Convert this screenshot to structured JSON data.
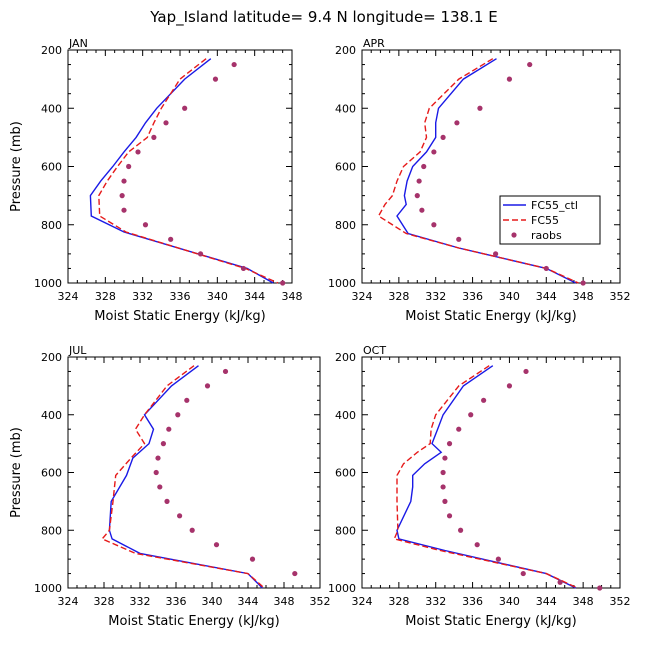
{
  "title": "Yap_Island  latitude= 9.4 N longitude= 138.1 E",
  "colors": {
    "ctl": "#1a1ae6",
    "fc55": "#e61a1a",
    "raobs": "#a6336b"
  },
  "legend": {
    "entries": [
      "FC55_ctl",
      "FC55",
      "raobs"
    ],
    "placement": "right-middle of APR panel"
  },
  "chart_data": [
    {
      "type": "line",
      "panel_label": "JAN",
      "xlabel": "Moist Static Energy (kJ/kg)",
      "ylabel": "Pressure (mb)",
      "xlim": [
        324,
        348
      ],
      "xticks": [
        324,
        328,
        332,
        336,
        340,
        344,
        348
      ],
      "ylim": [
        200,
        1000
      ],
      "yticks": [
        200,
        400,
        600,
        800,
        1000
      ],
      "series": [
        {
          "name": "FC55_ctl",
          "style": "solid",
          "x": [
            339.3,
            336.5,
            333.5,
            332.3,
            331.3,
            330.0,
            328.8,
            327.5,
            326.4,
            326.5,
            330.0,
            343.2,
            346.0
          ],
          "y": [
            230,
            300,
            400,
            450,
            500,
            550,
            600,
            650,
            700,
            770,
            825,
            950,
            1000
          ]
        },
        {
          "name": "FC55",
          "style": "dashed",
          "x": [
            338.8,
            336.0,
            334.0,
            333.2,
            332.5,
            330.5,
            329.3,
            328.2,
            327.3,
            327.4,
            330.2,
            343.0,
            346.5
          ],
          "y": [
            230,
            300,
            400,
            450,
            500,
            550,
            600,
            650,
            700,
            770,
            825,
            950,
            1000
          ]
        },
        {
          "name": "raobs",
          "style": "points",
          "x": [
            341.8,
            339.8,
            336.5,
            334.5,
            333.2,
            331.5,
            330.5,
            330.0,
            329.8,
            330.0,
            332.3,
            335.0,
            338.2,
            342.8,
            347.0
          ],
          "y": [
            250,
            300,
            400,
            450,
            500,
            550,
            600,
            650,
            700,
            750,
            800,
            850,
            900,
            950,
            1000
          ]
        }
      ]
    },
    {
      "type": "line",
      "panel_label": "APR",
      "xlabel": "Moist Static Energy (kJ/kg)",
      "ylabel": "Pressure (mb)",
      "xlim": [
        324,
        352
      ],
      "xticks": [
        324,
        328,
        332,
        336,
        340,
        344,
        348,
        352
      ],
      "ylim": [
        200,
        1000
      ],
      "yticks": [
        200,
        400,
        600,
        800,
        1000
      ],
      "series": [
        {
          "name": "FC55_ctl",
          "style": "solid",
          "x": [
            338.6,
            335.0,
            332.3,
            332.0,
            332.0,
            331.0,
            329.5,
            328.9,
            328.6,
            328.8,
            327.8,
            329.0,
            334.5,
            344.0,
            347.2
          ],
          "y": [
            230,
            300,
            400,
            450,
            500,
            550,
            600,
            650,
            700,
            730,
            770,
            830,
            880,
            950,
            1000
          ]
        },
        {
          "name": "FC55",
          "style": "dashed",
          "x": [
            338.2,
            334.5,
            331.3,
            330.8,
            331.0,
            330.3,
            328.5,
            327.8,
            327.3,
            326.5,
            325.8,
            328.8,
            334.5,
            344.0,
            347.5
          ],
          "y": [
            230,
            300,
            400,
            450,
            500,
            550,
            600,
            650,
            700,
            730,
            770,
            830,
            880,
            950,
            1000
          ]
        },
        {
          "name": "raobs",
          "style": "points",
          "x": [
            342.2,
            340.0,
            336.8,
            334.3,
            332.8,
            331.8,
            330.7,
            330.2,
            330.0,
            330.5,
            331.8,
            334.5,
            338.5,
            344.0,
            348.0
          ],
          "y": [
            250,
            300,
            400,
            450,
            500,
            550,
            600,
            650,
            700,
            750,
            800,
            850,
            900,
            950,
            1000
          ]
        }
      ]
    },
    {
      "type": "line",
      "panel_label": "JUL",
      "xlabel": "Moist Static Energy (kJ/kg)",
      "ylabel": "Pressure (mb)",
      "xlim": [
        324,
        352
      ],
      "xticks": [
        324,
        328,
        332,
        336,
        340,
        344,
        348,
        352
      ],
      "ylim": [
        200,
        1000
      ],
      "yticks": [
        200,
        400,
        600,
        800,
        1000
      ],
      "series": [
        {
          "name": "FC55_ctl",
          "style": "solid",
          "x": [
            338.5,
            335.5,
            332.5,
            333.5,
            333.0,
            331.2,
            330.5,
            328.8,
            328.6,
            328.9,
            332.0,
            344.0,
            345.6
          ],
          "y": [
            230,
            300,
            400,
            450,
            500,
            550,
            610,
            700,
            800,
            830,
            880,
            950,
            1000
          ]
        },
        {
          "name": "FC55",
          "style": "dashed",
          "x": [
            338.0,
            335.0,
            332.5,
            331.5,
            332.5,
            331.0,
            329.3,
            329.0,
            328.6,
            327.8,
            331.5,
            344.0,
            345.8
          ],
          "y": [
            230,
            300,
            400,
            450,
            500,
            550,
            610,
            700,
            800,
            830,
            880,
            950,
            1000
          ]
        },
        {
          "name": "raobs",
          "style": "points",
          "x": [
            341.5,
            339.5,
            337.2,
            336.2,
            335.2,
            334.6,
            334.0,
            333.8,
            334.2,
            335.0,
            336.4,
            337.8,
            340.5,
            344.5,
            349.2
          ],
          "y": [
            250,
            300,
            350,
            400,
            450,
            500,
            550,
            600,
            650,
            700,
            750,
            800,
            850,
            900,
            950
          ]
        }
      ]
    },
    {
      "type": "line",
      "panel_label": "OCT",
      "xlabel": "Moist Static Energy (kJ/kg)",
      "ylabel": "Pressure (mb)",
      "xlim": [
        324,
        352
      ],
      "xticks": [
        324,
        328,
        332,
        336,
        340,
        344,
        348,
        352
      ],
      "ylim": [
        200,
        1000
      ],
      "yticks": [
        200,
        400,
        600,
        800,
        1000
      ],
      "series": [
        {
          "name": "FC55_ctl",
          "style": "solid",
          "x": [
            338.2,
            335.0,
            332.8,
            332.2,
            331.6,
            332.6,
            330.8,
            329.5,
            329.5,
            329.3,
            327.8,
            328.0,
            333.0,
            344.0,
            347.2
          ],
          "y": [
            230,
            300,
            400,
            450,
            500,
            530,
            570,
            610,
            650,
            700,
            800,
            830,
            870,
            950,
            1000
          ]
        },
        {
          "name": "FC55",
          "style": "dashed",
          "x": [
            337.8,
            334.5,
            332.0,
            331.5,
            331.4,
            330.0,
            328.5,
            327.8,
            327.8,
            327.8,
            327.9,
            327.5,
            332.5,
            344.0,
            347.4
          ],
          "y": [
            230,
            300,
            400,
            450,
            500,
            530,
            570,
            610,
            650,
            700,
            800,
            830,
            870,
            950,
            1000
          ]
        },
        {
          "name": "raobs",
          "style": "points",
          "x": [
            341.8,
            340.0,
            337.2,
            335.8,
            334.5,
            333.5,
            333.0,
            332.8,
            332.8,
            333.0,
            333.5,
            334.7,
            336.5,
            338.8,
            341.5,
            345.5,
            349.8
          ],
          "y": [
            250,
            300,
            350,
            400,
            450,
            500,
            550,
            600,
            650,
            700,
            750,
            800,
            850,
            900,
            950,
            980,
            1000
          ]
        }
      ]
    }
  ]
}
